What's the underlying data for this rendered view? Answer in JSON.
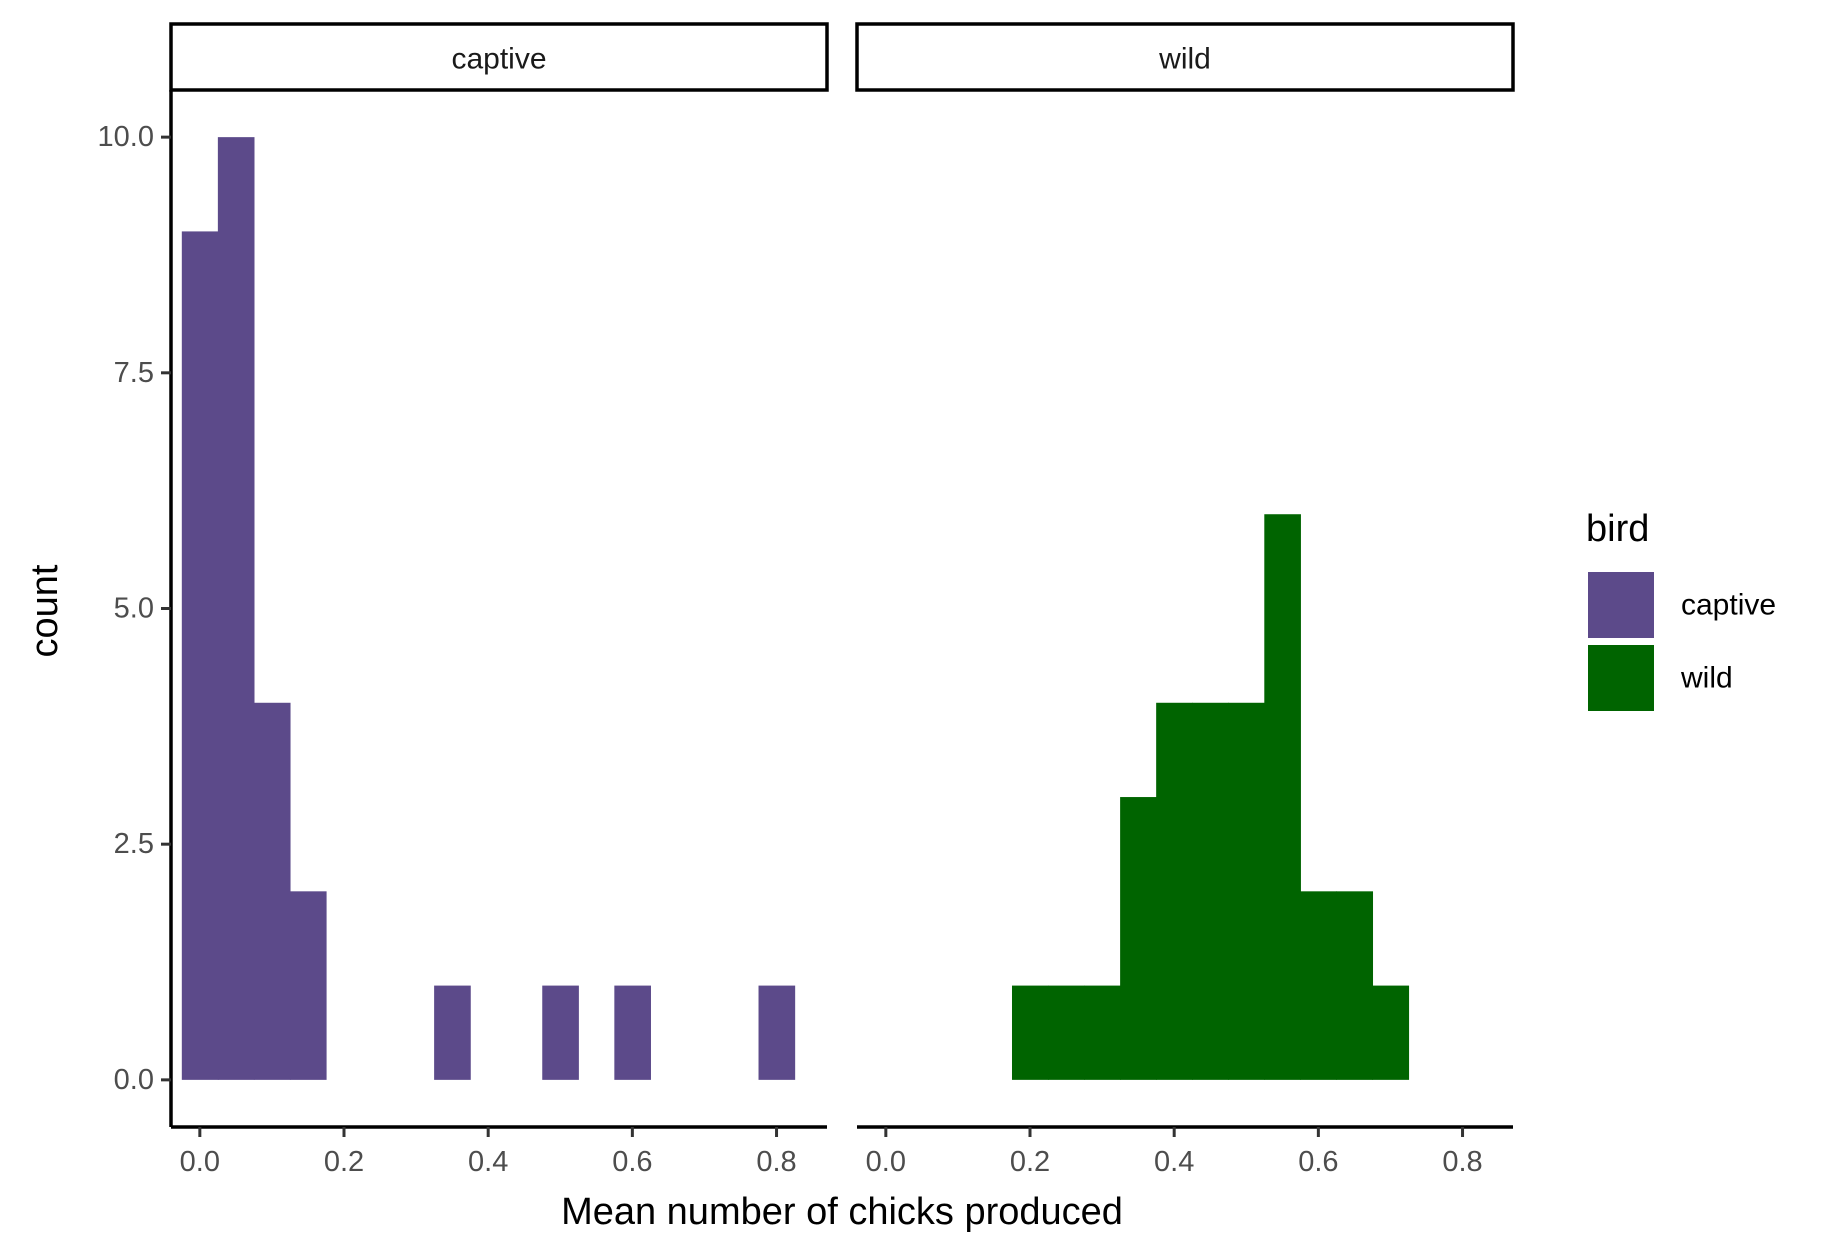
{
  "chart_data": {
    "type": "bar",
    "subtype": "faceted-histogram",
    "xlabel": "Mean number of chicks produced",
    "ylabel": "count",
    "xlim": [
      -0.04,
      0.87
    ],
    "ylim": [
      -0.5,
      10.5
    ],
    "x_ticks": [
      "0.0",
      "0.2",
      "0.4",
      "0.6",
      "0.8"
    ],
    "x_tick_values": [
      0,
      0.2,
      0.4,
      0.6,
      0.8
    ],
    "y_ticks": [
      "0.0",
      "2.5",
      "5.0",
      "7.5",
      "10.0"
    ],
    "y_tick_values": [
      0,
      2.5,
      5,
      7.5,
      10
    ],
    "binwidth": 0.05,
    "grid": false,
    "legend": {
      "title": "bird",
      "position": "right",
      "entries": [
        {
          "label": "captive",
          "color": "#5c4a8a"
        },
        {
          "label": "wild",
          "color": "#006400"
        }
      ]
    },
    "facets": [
      {
        "label": "captive",
        "color": "#5c4a8a",
        "bins": [
          {
            "x": 0.0,
            "count": 9
          },
          {
            "x": 0.05,
            "count": 10
          },
          {
            "x": 0.1,
            "count": 4
          },
          {
            "x": 0.15,
            "count": 2
          },
          {
            "x": 0.35,
            "count": 1
          },
          {
            "x": 0.5,
            "count": 1
          },
          {
            "x": 0.6,
            "count": 1
          },
          {
            "x": 0.8,
            "count": 1
          }
        ]
      },
      {
        "label": "wild",
        "color": "#006400",
        "bins": [
          {
            "x": 0.2,
            "count": 1
          },
          {
            "x": 0.25,
            "count": 1
          },
          {
            "x": 0.3,
            "count": 1
          },
          {
            "x": 0.35,
            "count": 3
          },
          {
            "x": 0.4,
            "count": 4
          },
          {
            "x": 0.45,
            "count": 4
          },
          {
            "x": 0.5,
            "count": 4
          },
          {
            "x": 0.55,
            "count": 6
          },
          {
            "x": 0.6,
            "count": 2
          },
          {
            "x": 0.65,
            "count": 2
          },
          {
            "x": 0.7,
            "count": 1
          }
        ]
      }
    ]
  }
}
